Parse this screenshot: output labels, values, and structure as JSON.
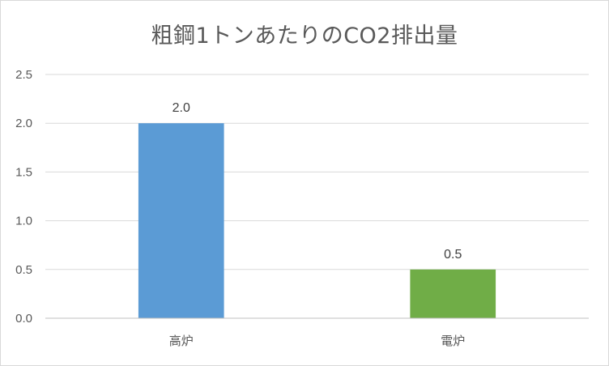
{
  "chart_data": {
    "type": "bar",
    "title": "粗鋼1トンあたりのCO2排出量",
    "xlabel": "",
    "ylabel": "",
    "categories": [
      "高炉",
      "電炉"
    ],
    "values": [
      2.0,
      0.5
    ],
    "value_labels": [
      "2.0",
      "0.5"
    ],
    "bar_colors": [
      "#5b9bd5",
      "#70ad47"
    ],
    "ylim": [
      0,
      2.5
    ],
    "yticks": [
      "0.0",
      "0.5",
      "1.0",
      "1.5",
      "2.0",
      "2.5"
    ],
    "grid": true,
    "legend": "none"
  }
}
